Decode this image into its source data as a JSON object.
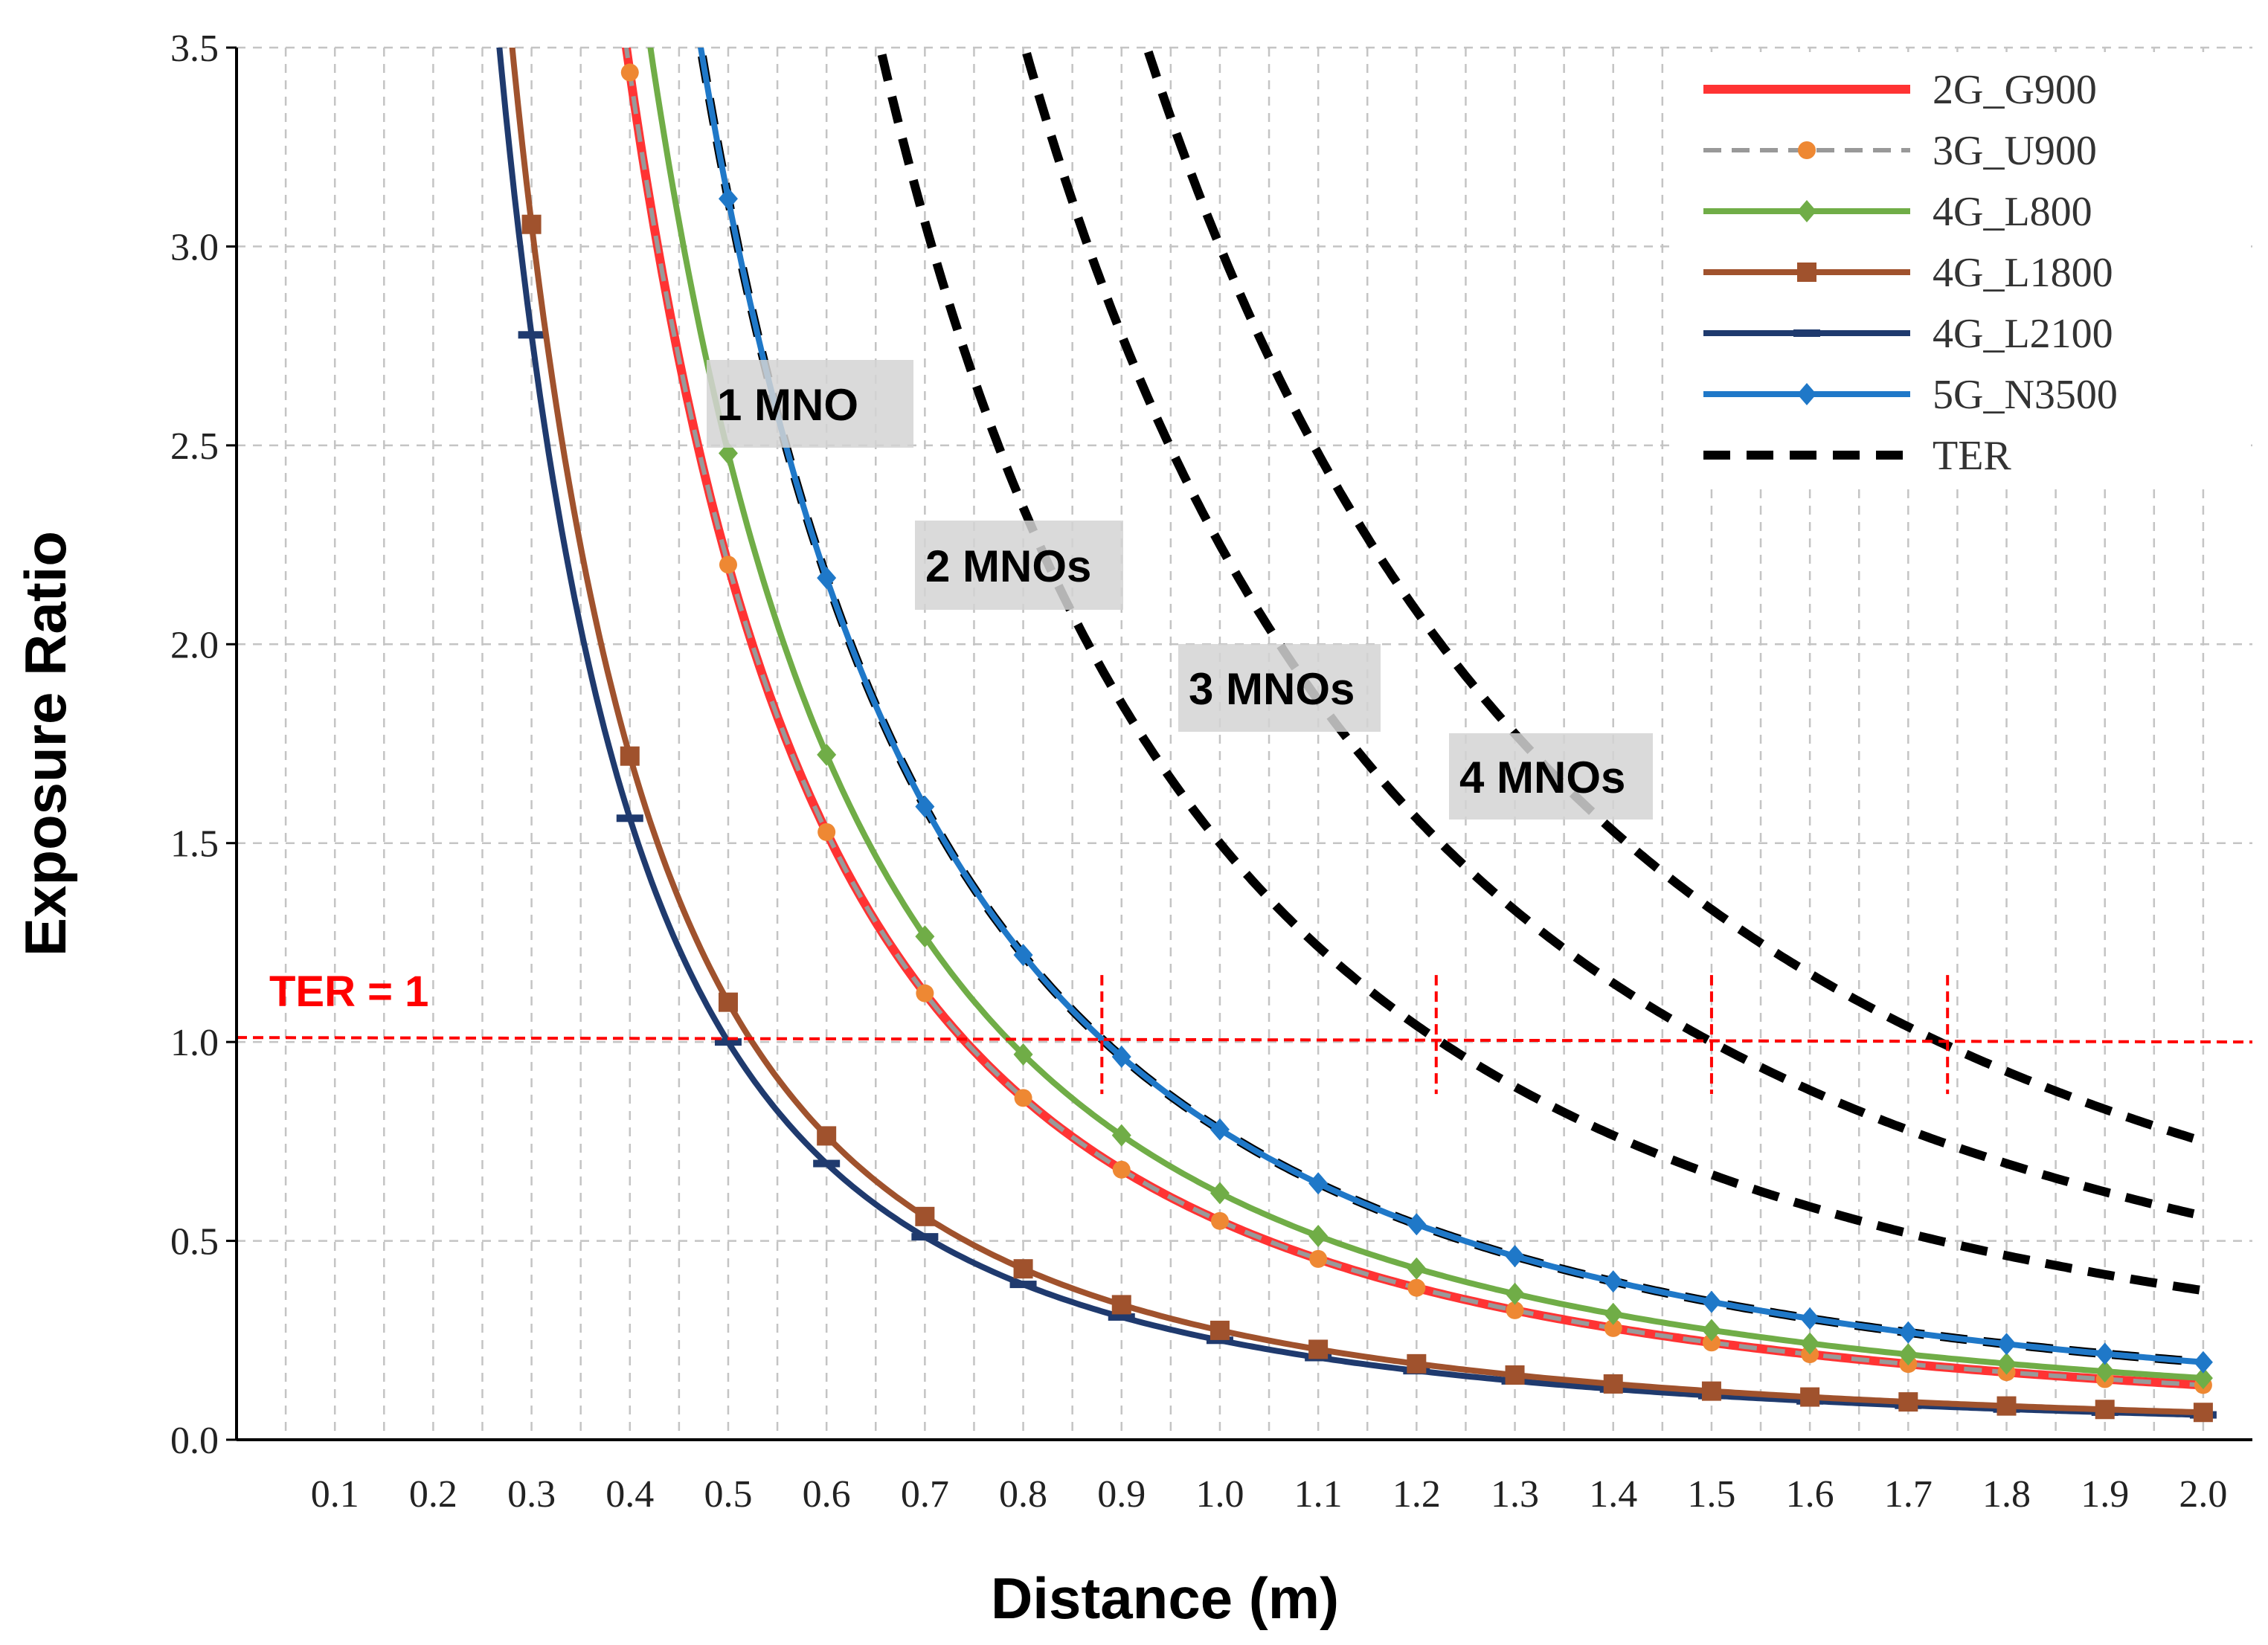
{
  "chart_data": {
    "type": "line",
    "title": "",
    "xlabel": "Distance (m)",
    "ylabel": "Exposure Ratio",
    "xlim": [
      0.0,
      2.05
    ],
    "ylim": [
      0.0,
      3.5
    ],
    "x_ticks": [
      "0.1",
      "0.2",
      "0.3",
      "0.4",
      "0.5",
      "0.6",
      "0.7",
      "0.8",
      "0.9",
      "1.0",
      "1.1",
      "1.2",
      "1.3",
      "1.4",
      "1.5",
      "1.6",
      "1.7",
      "1.8",
      "1.9",
      "2.0"
    ],
    "y_ticks": [
      "0.0",
      "0.5",
      "1.0",
      "1.5",
      "2.0",
      "2.5",
      "3.0",
      "3.5"
    ],
    "grid": true,
    "legend_position": "top-right",
    "x": [
      0.3,
      0.4,
      0.5,
      0.6,
      0.7,
      0.8,
      0.9,
      1.0,
      1.1,
      1.2,
      1.3,
      1.4,
      1.5,
      1.6,
      1.7,
      1.8,
      1.9,
      2.0
    ],
    "series": [
      {
        "name": "2G_G900",
        "k": 0.55,
        "color": "#ff3333",
        "dash": "none",
        "marker": "none",
        "width": 12
      },
      {
        "name": "3G_U900",
        "k": 0.55,
        "color": "#999999",
        "dash": "24 14",
        "marker": "circle",
        "marker_color": "#ee8833",
        "width": 6
      },
      {
        "name": "4G_L800",
        "k": 0.62,
        "color": "#70ad47",
        "dash": "none",
        "marker": "diamond",
        "marker_color": "#70ad47",
        "width": 8
      },
      {
        "name": "4G_L1800",
        "k": 0.275,
        "color": "#a0522d",
        "dash": "none",
        "marker": "square",
        "marker_color": "#a0522d",
        "width": 8
      },
      {
        "name": "4G_L2100",
        "k": 0.25,
        "color": "#1f3a6e",
        "dash": "none",
        "marker": "hline",
        "marker_color": "#1f3a6e",
        "width": 8
      },
      {
        "name": "5G_N3500",
        "k": 0.78,
        "color": "#1f78c8",
        "dash": "none",
        "marker": "diamond",
        "marker_color": "#1f78c8",
        "width": 8
      },
      {
        "name": "TER",
        "k": 0.78,
        "color": "#000000",
        "dash": "36 22",
        "marker": "none",
        "width": 12
      }
    ],
    "ter_curves": [
      {
        "label": "1 MNO",
        "k": 0.78
      },
      {
        "label": "2 MNOs",
        "k": 1.5
      },
      {
        "label": "3 MNOs",
        "k": 2.25
      },
      {
        "label": "4 MNOs",
        "k": 3.0
      }
    ],
    "reference_line": {
      "label": "TER = 1",
      "y": 1.0
    },
    "crossing_markers_x": [
      0.88,
      1.22,
      1.5,
      1.74
    ],
    "annotations": [
      "1 MNO",
      "2 MNOs",
      "3 MNOs",
      "4 MNOs"
    ]
  }
}
